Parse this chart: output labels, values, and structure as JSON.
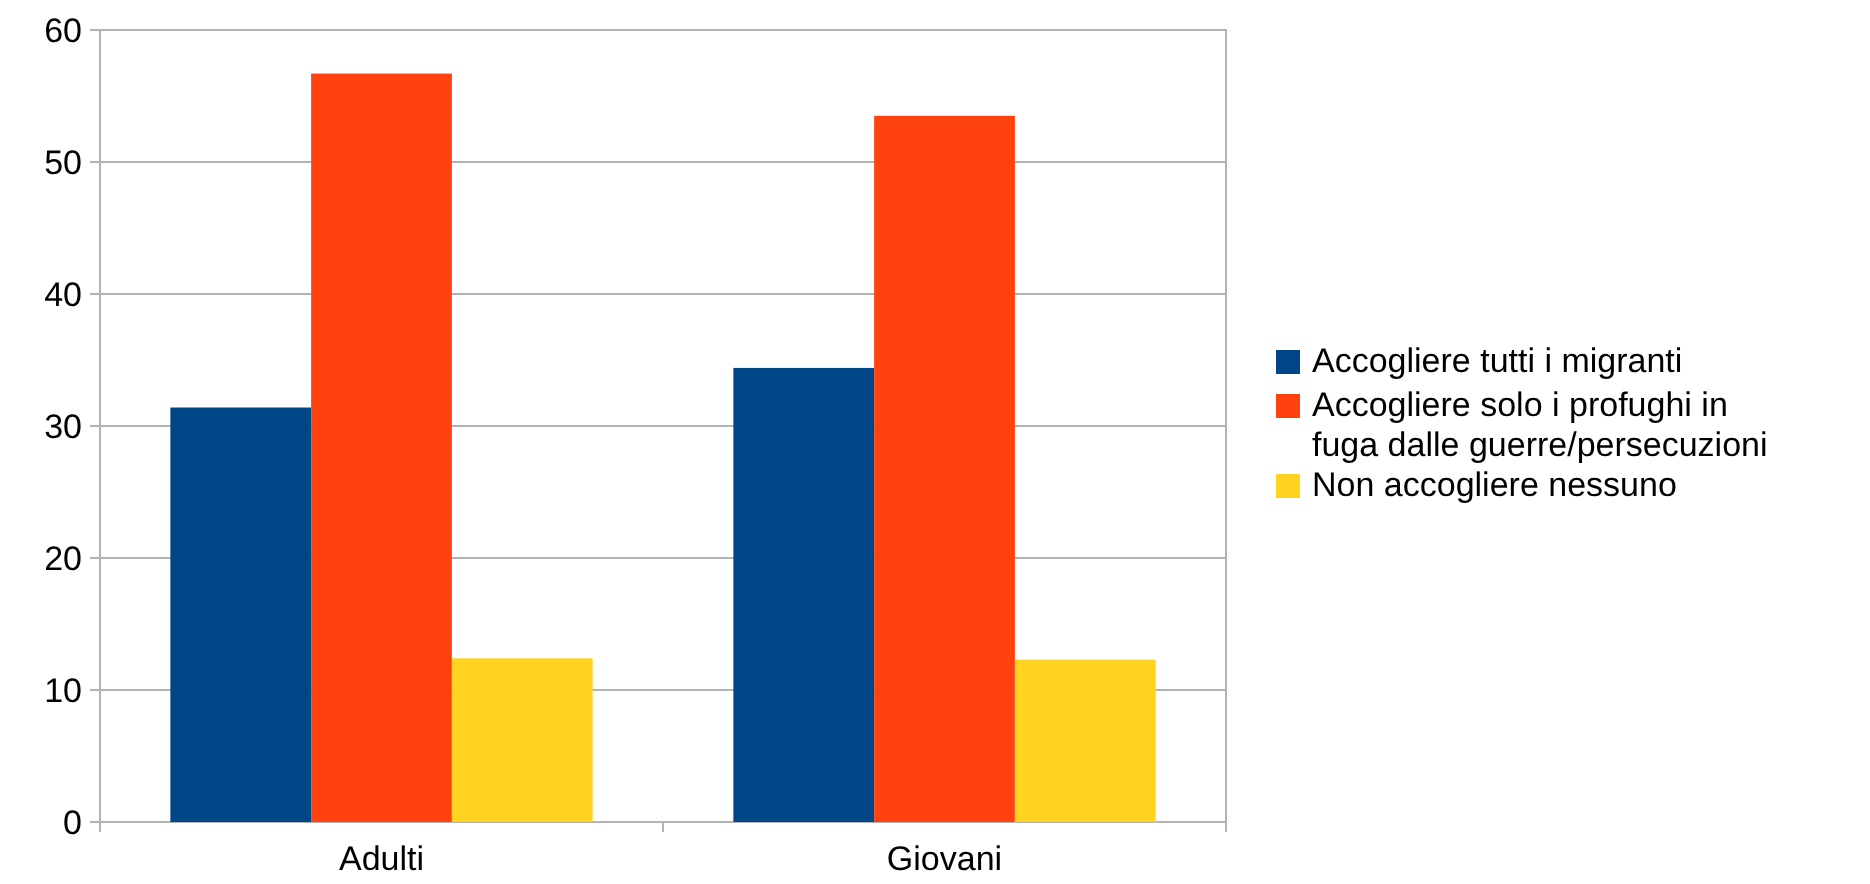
{
  "chart_data": {
    "type": "bar",
    "categories": [
      "Adulti",
      "Giovani"
    ],
    "series": [
      {
        "name": "Accogliere tutti i migranti",
        "color": "#004586",
        "values": [
          31.4,
          34.4
        ]
      },
      {
        "name": "Accogliere solo i profughi in fuga dalle guerre/persecuzioni",
        "color": "#ff420e",
        "values": [
          56.7,
          53.5
        ]
      },
      {
        "name": "Non accogliere nessuno",
        "color": "#ffd320",
        "values": [
          12.4,
          12.3
        ]
      }
    ],
    "ylim": [
      0,
      60
    ],
    "yticks": [
      0,
      10,
      20,
      30,
      40,
      50,
      60
    ],
    "grid": "y",
    "legend": "right"
  }
}
